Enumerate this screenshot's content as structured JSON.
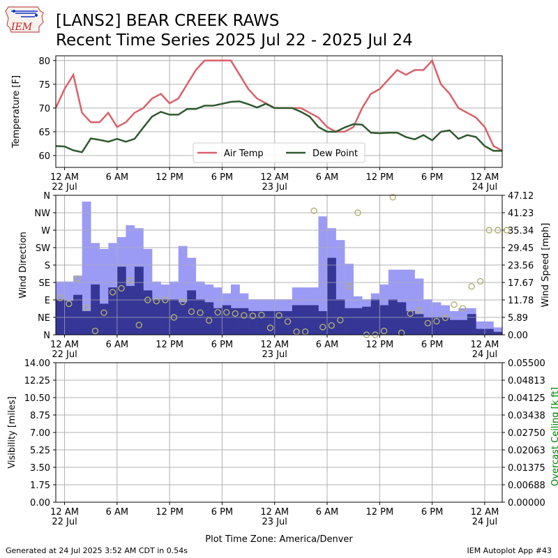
{
  "header": {
    "title_line1": "[LANS2] BEAR CREEK RAWS",
    "title_line2": "Recent Time Series 2025 Jul 22 - 2025 Jul 24",
    "logo_text": "IEM"
  },
  "footer": {
    "generated": "Generated at 24 Jul 2025 3:52 AM CDT in 0.54s",
    "app": "IEM Autoplot App #43",
    "timezone_label": "Plot Time Zone: America/Denver"
  },
  "colors": {
    "air_temp": "#d9606a",
    "dew_point": "#2e5a2e",
    "wind_gust": "#9b9bf5",
    "wind_speed": "#363697",
    "wind_dir": "#b0b070",
    "ceiling_axis": "#008000",
    "grid": "#b0b0b0"
  },
  "chart_data": [
    {
      "type": "line",
      "ylabel": "Temperature [F]",
      "ylim": [
        57.5,
        81
      ],
      "yticks": [
        60,
        65,
        70,
        75,
        80
      ],
      "xlim": [
        -1,
        50
      ],
      "xticks": [
        {
          "hour": 0,
          "label": "12 AM",
          "sub": "22 Jul"
        },
        {
          "hour": 6,
          "label": "6 AM",
          "sub": ""
        },
        {
          "hour": 12,
          "label": "12 PM",
          "sub": ""
        },
        {
          "hour": 18,
          "label": "6 PM",
          "sub": ""
        },
        {
          "hour": 24,
          "label": "12 AM",
          "sub": "23 Jul"
        },
        {
          "hour": 30,
          "label": "6 AM",
          "sub": ""
        },
        {
          "hour": 36,
          "label": "12 PM",
          "sub": ""
        },
        {
          "hour": 42,
          "label": "6 PM",
          "sub": ""
        },
        {
          "hour": 48,
          "label": "12 AM",
          "sub": "24 Jul"
        }
      ],
      "grid": true,
      "legend": "lower center",
      "series": [
        {
          "name": "Air Temp",
          "x": [
            -1,
            0,
            1,
            2,
            3,
            4,
            5,
            6,
            7,
            8,
            9,
            10,
            11,
            12,
            13,
            14,
            15,
            16,
            17,
            18,
            19,
            20,
            21,
            22,
            23,
            24,
            25,
            26,
            27,
            28,
            29,
            30,
            31,
            32,
            33,
            34,
            35,
            36,
            37,
            38,
            39,
            40,
            41,
            42,
            43,
            44,
            45,
            46,
            47,
            48,
            49,
            50
          ],
          "values": [
            70,
            74,
            77,
            69,
            67,
            67,
            69,
            66,
            67,
            69,
            70,
            72,
            73,
            71,
            72,
            75,
            78,
            80,
            80,
            80,
            80,
            77,
            74,
            72,
            71,
            70,
            70,
            70,
            70,
            69,
            68,
            66,
            65,
            65,
            66,
            70,
            73,
            74,
            76,
            78,
            77,
            78,
            78,
            80,
            75,
            73,
            70,
            69,
            68,
            66,
            62,
            61
          ]
        },
        {
          "name": "Dew Point",
          "x": [
            -1,
            0,
            1,
            2,
            3,
            4,
            5,
            6,
            7,
            8,
            9,
            10,
            11,
            12,
            13,
            14,
            15,
            16,
            17,
            18,
            19,
            20,
            21,
            22,
            23,
            24,
            25,
            26,
            27,
            28,
            29,
            30,
            31,
            32,
            33,
            34,
            35,
            36,
            37,
            38,
            39,
            40,
            41,
            42,
            43,
            44,
            45,
            46,
            47,
            48,
            49,
            50
          ],
          "values": [
            62,
            61.9,
            61.1,
            60.7,
            63.6,
            63.3,
            62.9,
            63.5,
            62.9,
            63.5,
            65.9,
            68.2,
            69.2,
            68.6,
            68.6,
            69.8,
            69.8,
            70.5,
            70.5,
            70.9,
            71.3,
            71.4,
            70.8,
            70.1,
            70.9,
            70.0,
            70.0,
            70.0,
            69.2,
            68.2,
            66.0,
            65.0,
            65.0,
            65.9,
            66.6,
            66.5,
            64.8,
            64.7,
            64.8,
            64.8,
            63.9,
            63.4,
            64.3,
            63.2,
            65.0,
            65.3,
            63.5,
            64.3,
            63.9,
            62.0,
            61.0,
            61.0
          ]
        }
      ]
    },
    {
      "type": "bar",
      "ylabel": "Wind Direction",
      "y2label": "Wind Speed [mph]",
      "xlim": [
        -1,
        50
      ],
      "dir_ticks": [
        "N",
        "NE",
        "E",
        "SE",
        "S",
        "SW",
        "W",
        "NW",
        "N"
      ],
      "speed_ylim": [
        0,
        47.12
      ],
      "speed_ticks": [
        "0.00",
        "5.89",
        "11.78",
        "17.67",
        "23.56",
        "29.45",
        "35.34",
        "41.23",
        "47.12"
      ],
      "series": [
        {
          "name": "Wind Gust",
          "x": [
            -1,
            0,
            1,
            2,
            3,
            4,
            5,
            6,
            7,
            8,
            9,
            10,
            11,
            12,
            13,
            14,
            15,
            16,
            17,
            18,
            19,
            20,
            21,
            22,
            23,
            24,
            25,
            26,
            27,
            28,
            29,
            30,
            31,
            32,
            33,
            34,
            35,
            36,
            37,
            38,
            39,
            40,
            41,
            42,
            43,
            44,
            45,
            46,
            47,
            48,
            49
          ],
          "values": [
            18,
            18,
            20,
            45,
            31,
            29,
            31,
            33,
            37,
            36,
            29,
            18,
            17,
            18,
            30,
            26,
            18,
            17,
            16,
            14,
            17,
            14,
            12,
            12,
            12,
            12,
            12,
            16,
            16,
            16,
            40,
            36,
            32,
            24,
            13,
            12,
            14,
            17,
            22,
            22,
            22,
            19,
            12,
            11,
            10,
            8,
            9,
            9,
            4.5,
            4.5,
            2.5
          ]
        },
        {
          "name": "Wind Speed",
          "x": [
            -1,
            0,
            1,
            2,
            3,
            4,
            5,
            6,
            7,
            8,
            9,
            10,
            11,
            12,
            13,
            14,
            15,
            16,
            17,
            18,
            19,
            20,
            21,
            22,
            23,
            24,
            25,
            26,
            27,
            28,
            29,
            30,
            31,
            32,
            33,
            34,
            35,
            36,
            37,
            38,
            39,
            40,
            41,
            42,
            43,
            44,
            45,
            46,
            47,
            48,
            49
          ],
          "values": [
            12,
            11.5,
            13.5,
            8,
            17,
            10.5,
            16,
            23,
            16.5,
            23,
            15,
            12,
            12,
            12,
            11,
            15,
            12,
            11,
            9,
            10,
            9,
            9,
            8,
            8,
            8,
            8,
            8,
            10,
            10,
            10,
            8,
            26,
            12,
            9,
            9,
            9.5,
            12,
            10,
            12,
            11,
            8,
            7,
            6,
            6,
            6,
            5,
            5,
            7,
            2,
            2,
            1
          ]
        },
        {
          "name": "Wind Direction",
          "type": "scatter",
          "x": [
            -1,
            0,
            1,
            2,
            3,
            4,
            5,
            6,
            7,
            8,
            9,
            10,
            11,
            12,
            13,
            14,
            15,
            16,
            17,
            18,
            19,
            20,
            21,
            22,
            23,
            24,
            25,
            26,
            27,
            28,
            29,
            30,
            31,
            32,
            33,
            34,
            35,
            36,
            37,
            38,
            39,
            40,
            41,
            42,
            43,
            44,
            45,
            46,
            47,
            48,
            49,
            50
          ],
          "values": [
            95,
            80,
            145,
            70,
            10,
            57,
            110,
            120,
            140,
            25,
            90,
            87,
            90,
            45,
            85,
            60,
            57,
            37,
            58,
            58,
            55,
            50,
            49,
            51,
            18,
            50,
            34,
            8,
            8,
            320,
            20,
            24,
            38,
            125,
            315,
            0,
            0,
            10,
            355,
            5,
            55,
            63,
            30,
            35,
            44,
            78,
            68,
            125,
            138,
            270,
            270,
            270
          ]
        }
      ]
    },
    {
      "type": "line",
      "ylabel": "Visibility [miles]",
      "y2label": "Overcast Ceiling [k ft]",
      "xlim": [
        -1,
        50
      ],
      "vis_ylim": [
        0,
        14
      ],
      "vis_ticks": [
        "0.00",
        "1.75",
        "3.50",
        "5.25",
        "7.00",
        "8.75",
        "10.50",
        "12.25",
        "14.00"
      ],
      "ceil_ylim": [
        0,
        0.055
      ],
      "ceil_ticks": [
        "0.00000",
        "0.00688",
        "0.01375",
        "0.02063",
        "0.02750",
        "0.03438",
        "0.04125",
        "0.04813",
        "0.05500"
      ],
      "series": []
    }
  ]
}
